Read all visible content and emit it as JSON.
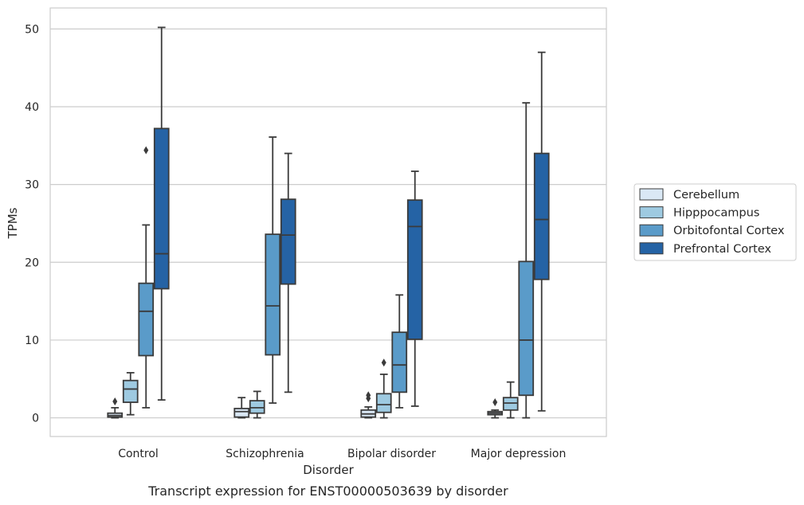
{
  "chart_data": {
    "type": "boxplot",
    "caption": "Transcript expression for ENST00000503639 by disorder",
    "xlabel": "Disorder",
    "ylabel": "TPMs",
    "ylim": [
      -2.4,
      52.7
    ],
    "yticks": [
      0,
      10,
      20,
      30,
      40,
      50
    ],
    "categories": [
      "Control",
      "Schizophrenia",
      "Bipolar disorder",
      "Major depression"
    ],
    "grid": "horizontal",
    "legend_position": "right",
    "series": [
      {
        "name": "Cerebellum",
        "color": "#dae8f5",
        "boxes": [
          {
            "whislo": 0.0,
            "q1": 0.1,
            "med": 0.3,
            "q3": 0.6,
            "whishi": 1.3,
            "fliers": [
              2.1
            ]
          },
          {
            "whislo": 0.0,
            "q1": 0.1,
            "med": 0.8,
            "q3": 1.2,
            "whishi": 2.6,
            "fliers": []
          },
          {
            "whislo": 0.0,
            "q1": 0.1,
            "med": 0.5,
            "q3": 1.0,
            "whishi": 1.4,
            "fliers": [
              2.5,
              2.9
            ]
          },
          {
            "whislo": 0.0,
            "q1": 0.4,
            "med": 0.6,
            "q3": 0.8,
            "whishi": 1.0,
            "fliers": [
              2.0
            ]
          }
        ]
      },
      {
        "name": "Hipppocampus",
        "color": "#9ecae1",
        "boxes": [
          {
            "whislo": 0.4,
            "q1": 2.0,
            "med": 3.7,
            "q3": 4.8,
            "whishi": 5.8,
            "fliers": []
          },
          {
            "whislo": 0.0,
            "q1": 0.6,
            "med": 1.3,
            "q3": 2.2,
            "whishi": 3.4,
            "fliers": []
          },
          {
            "whislo": 0.0,
            "q1": 0.7,
            "med": 1.7,
            "q3": 3.1,
            "whishi": 5.6,
            "fliers": [
              7.1
            ]
          },
          {
            "whislo": 0.0,
            "q1": 1.0,
            "med": 1.9,
            "q3": 2.6,
            "whishi": 4.6,
            "fliers": []
          }
        ]
      },
      {
        "name": "Orbitofontal Cortex",
        "color": "#5a9bc9",
        "boxes": [
          {
            "whislo": 1.3,
            "q1": 8.0,
            "med": 13.7,
            "q3": 17.3,
            "whishi": 24.8,
            "fliers": [
              34.4
            ]
          },
          {
            "whislo": 1.9,
            "q1": 8.1,
            "med": 14.4,
            "q3": 23.6,
            "whishi": 36.1,
            "fliers": []
          },
          {
            "whislo": 1.3,
            "q1": 3.3,
            "med": 6.8,
            "q3": 11.0,
            "whishi": 15.8,
            "fliers": []
          },
          {
            "whislo": 0.0,
            "q1": 2.9,
            "med": 10.0,
            "q3": 20.1,
            "whishi": 40.5,
            "fliers": []
          }
        ]
      },
      {
        "name": "Prefrontal Cortex",
        "color": "#2563a5",
        "boxes": [
          {
            "whislo": 2.3,
            "q1": 16.6,
            "med": 21.1,
            "q3": 37.2,
            "whishi": 50.2,
            "fliers": []
          },
          {
            "whislo": 3.3,
            "q1": 17.2,
            "med": 23.5,
            "q3": 28.1,
            "whishi": 34.0,
            "fliers": []
          },
          {
            "whislo": 1.5,
            "q1": 10.1,
            "med": 24.6,
            "q3": 28.0,
            "whishi": 31.7,
            "fliers": []
          },
          {
            "whislo": 0.9,
            "q1": 17.8,
            "med": 25.5,
            "q3": 34.0,
            "whishi": 47.0,
            "fliers": []
          }
        ]
      }
    ]
  }
}
